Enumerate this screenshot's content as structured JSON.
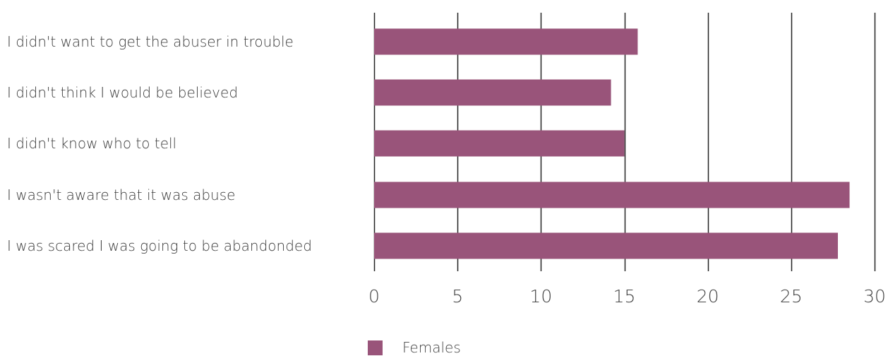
{
  "chart_data": {
    "type": "bar",
    "orientation": "horizontal",
    "categories": [
      "I didn't want to get the abuser in trouble",
      "I didn't think I would be believed",
      "I didn't know who to tell",
      "I wasn't aware that it was abuse",
      "I was scared I was going to be abandonded"
    ],
    "series": [
      {
        "name": "Females",
        "values": [
          15.8,
          14.2,
          15.0,
          28.5,
          27.8
        ]
      }
    ],
    "xlim": [
      0,
      30
    ],
    "xticks": [
      "0",
      "5",
      "10",
      "15",
      "20",
      "25",
      "30"
    ],
    "xtick_values": [
      0,
      5,
      10,
      15,
      20,
      25,
      30
    ],
    "grid": true,
    "legend_position": "bottom",
    "bar_color": "#99547a",
    "grid_color": "#222222"
  }
}
